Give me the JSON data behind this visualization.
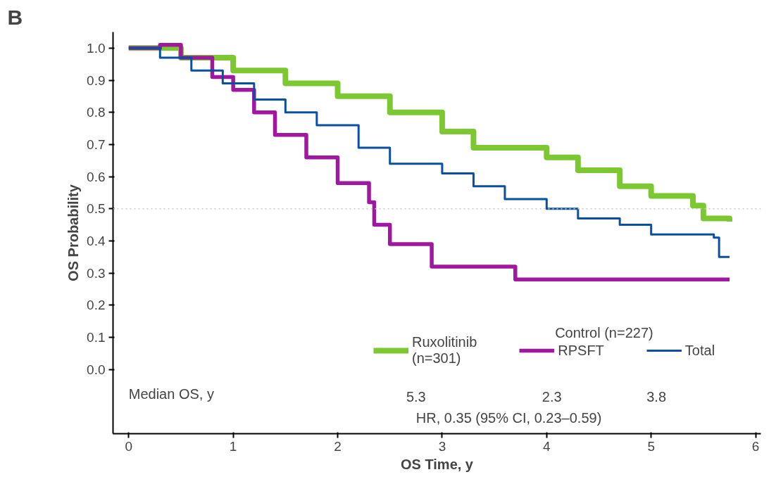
{
  "chart_data": {
    "type": "step",
    "title": "B",
    "xlabel": "OS Time, y",
    "ylabel": "OS Probability",
    "xlim": [
      -0.15,
      6.05
    ],
    "ylim": [
      -0.2,
      1.05
    ],
    "xticks": [
      0,
      1,
      2,
      3,
      4,
      5,
      6
    ],
    "yticks": [
      {
        "value": 0,
        "label": "0.0"
      },
      0.1,
      0.2,
      0.3,
      0.4,
      0.5,
      0.6,
      0.7,
      0.8,
      0.9,
      {
        "value": 1,
        "label": "1.0"
      }
    ],
    "grid": false,
    "legend": "bottom",
    "line_style": "solid",
    "marker": "none",
    "series": [
      {
        "name": "Ruxolitinib\n(n=301)",
        "color": "#7dc832",
        "x": [
          0,
          0.5,
          1,
          1.5,
          2,
          2.5,
          3,
          3.3,
          4,
          4.3,
          4.7,
          5,
          5.4,
          5.5,
          5.75
        ],
        "values": [
          1.0,
          0.97,
          0.93,
          0.89,
          0.85,
          0.8,
          0.74,
          0.69,
          0.66,
          0.62,
          0.57,
          0.54,
          0.51,
          0.47,
          0.46
        ]
      },
      {
        "name": "RPSFT",
        "color": "#a0189f",
        "x": [
          0,
          0.3,
          0.5,
          0.8,
          1.0,
          1.2,
          1.4,
          1.7,
          2,
          2.3,
          2.35,
          2.5,
          2.9,
          3.7,
          5.75
        ],
        "values": [
          1.0,
          1.01,
          0.97,
          0.91,
          0.87,
          0.8,
          0.73,
          0.66,
          0.58,
          0.52,
          0.45,
          0.39,
          0.32,
          0.28,
          0.28
        ]
      },
      {
        "name": "Total",
        "color": "#0a50a0",
        "x": [
          0,
          0.3,
          0.6,
          0.9,
          1.2,
          1.5,
          1.8,
          2.2,
          2.5,
          3,
          3.3,
          3.6,
          4,
          4.3,
          4.7,
          5,
          5.6,
          5.65,
          5.75
        ],
        "values": [
          1.0,
          0.97,
          0.93,
          0.89,
          0.84,
          0.8,
          0.76,
          0.69,
          0.64,
          0.61,
          0.57,
          0.53,
          0.5,
          0.47,
          0.45,
          0.42,
          0.41,
          0.35,
          0.35
        ]
      }
    ],
    "ref_lines": [
      {
        "axis": "y",
        "value": 0.5,
        "color": "#c8c8c8",
        "line_style": "dotted"
      }
    ],
    "annotations": [
      "Control (n=227)",
      "Median OS, y",
      "5.3",
      "2.3",
      "3.8",
      "HR, 0.35 (95% CI, 0.23–0.59)"
    ]
  }
}
